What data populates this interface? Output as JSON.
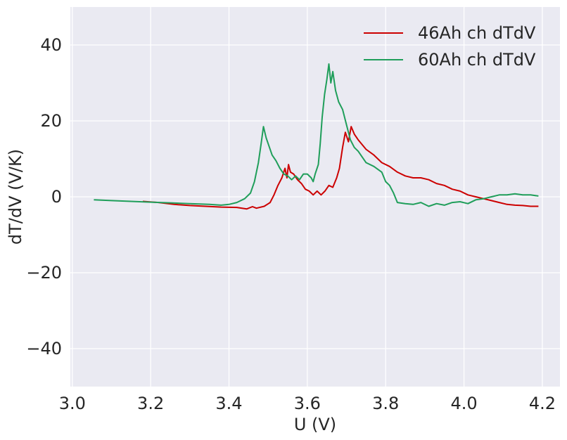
{
  "chart_data": {
    "type": "line",
    "title": "",
    "xlabel": "U (V)",
    "ylabel": "dT/dV (V/K)",
    "xlim": [
      2.995,
      4.245
    ],
    "ylim": [
      -50,
      50
    ],
    "xticks": [
      3.0,
      3.2,
      3.4,
      3.6,
      3.8,
      4.0,
      4.2
    ],
    "xtick_labels": [
      "3.0",
      "3.2",
      "3.4",
      "3.6",
      "3.8",
      "4.0",
      "4.2"
    ],
    "yticks": [
      -40,
      -20,
      0,
      20,
      40
    ],
    "ytick_labels": [
      "−40",
      "−20",
      "0",
      "20",
      "40"
    ],
    "grid": true,
    "legend_position": "top-right",
    "background_color": "#EAEAF2",
    "grid_color": "#FFFFFF",
    "series": [
      {
        "name": "46Ah ch dTdV",
        "color": "#CC0000",
        "points": [
          [
            3.18,
            -1.2
          ],
          [
            3.22,
            -1.5
          ],
          [
            3.26,
            -2.0
          ],
          [
            3.3,
            -2.3
          ],
          [
            3.34,
            -2.5
          ],
          [
            3.38,
            -2.7
          ],
          [
            3.42,
            -2.8
          ],
          [
            3.445,
            -3.2
          ],
          [
            3.46,
            -2.6
          ],
          [
            3.47,
            -3.0
          ],
          [
            3.49,
            -2.5
          ],
          [
            3.505,
            -1.5
          ],
          [
            3.515,
            0.5
          ],
          [
            3.525,
            3.0
          ],
          [
            3.535,
            5.0
          ],
          [
            3.543,
            7.5
          ],
          [
            3.548,
            5.0
          ],
          [
            3.552,
            8.5
          ],
          [
            3.557,
            6.5
          ],
          [
            3.565,
            6.0
          ],
          [
            3.575,
            4.5
          ],
          [
            3.585,
            3.5
          ],
          [
            3.595,
            2.0
          ],
          [
            3.605,
            1.5
          ],
          [
            3.615,
            0.5
          ],
          [
            3.625,
            1.5
          ],
          [
            3.635,
            0.5
          ],
          [
            3.645,
            1.5
          ],
          [
            3.655,
            3.0
          ],
          [
            3.665,
            2.5
          ],
          [
            3.675,
            5.0
          ],
          [
            3.682,
            7.5
          ],
          [
            3.69,
            13.0
          ],
          [
            3.697,
            17.0
          ],
          [
            3.705,
            14.5
          ],
          [
            3.712,
            18.5
          ],
          [
            3.72,
            16.5
          ],
          [
            3.73,
            15.0
          ],
          [
            3.75,
            12.5
          ],
          [
            3.77,
            11.0
          ],
          [
            3.79,
            9.0
          ],
          [
            3.81,
            8.0
          ],
          [
            3.83,
            6.5
          ],
          [
            3.85,
            5.5
          ],
          [
            3.87,
            5.0
          ],
          [
            3.89,
            5.0
          ],
          [
            3.91,
            4.5
          ],
          [
            3.93,
            3.5
          ],
          [
            3.95,
            3.0
          ],
          [
            3.97,
            2.0
          ],
          [
            3.99,
            1.5
          ],
          [
            4.01,
            0.5
          ],
          [
            4.03,
            0.0
          ],
          [
            4.05,
            -0.5
          ],
          [
            4.07,
            -1.0
          ],
          [
            4.09,
            -1.5
          ],
          [
            4.11,
            -2.0
          ],
          [
            4.13,
            -2.2
          ],
          [
            4.15,
            -2.3
          ],
          [
            4.17,
            -2.5
          ],
          [
            4.19,
            -2.5
          ]
        ]
      },
      {
        "name": "60Ah ch dTdV",
        "color": "#1F9E5A",
        "points": [
          [
            3.055,
            -0.8
          ],
          [
            3.1,
            -1.0
          ],
          [
            3.15,
            -1.2
          ],
          [
            3.2,
            -1.4
          ],
          [
            3.25,
            -1.6
          ],
          [
            3.3,
            -1.8
          ],
          [
            3.35,
            -2.0
          ],
          [
            3.38,
            -2.2
          ],
          [
            3.4,
            -2.0
          ],
          [
            3.42,
            -1.5
          ],
          [
            3.44,
            -0.5
          ],
          [
            3.455,
            1.0
          ],
          [
            3.465,
            4.0
          ],
          [
            3.475,
            9.0
          ],
          [
            3.482,
            14.0
          ],
          [
            3.488,
            18.5
          ],
          [
            3.495,
            15.5
          ],
          [
            3.5,
            14.0
          ],
          [
            3.51,
            11.0
          ],
          [
            3.52,
            9.5
          ],
          [
            3.53,
            7.5
          ],
          [
            3.54,
            6.0
          ],
          [
            3.55,
            5.5
          ],
          [
            3.56,
            4.5
          ],
          [
            3.57,
            5.5
          ],
          [
            3.58,
            4.5
          ],
          [
            3.59,
            6.0
          ],
          [
            3.6,
            6.0
          ],
          [
            3.61,
            5.0
          ],
          [
            3.615,
            4.0
          ],
          [
            3.62,
            6.0
          ],
          [
            3.628,
            8.5
          ],
          [
            3.633,
            14.0
          ],
          [
            3.638,
            21.0
          ],
          [
            3.644,
            27.0
          ],
          [
            3.65,
            31.0
          ],
          [
            3.655,
            35.0
          ],
          [
            3.66,
            30.0
          ],
          [
            3.665,
            33.0
          ],
          [
            3.672,
            28.0
          ],
          [
            3.68,
            25.0
          ],
          [
            3.69,
            23.0
          ],
          [
            3.7,
            19.0
          ],
          [
            3.71,
            15.0
          ],
          [
            3.72,
            13.0
          ],
          [
            3.73,
            12.0
          ],
          [
            3.74,
            10.5
          ],
          [
            3.75,
            9.0
          ],
          [
            3.77,
            8.0
          ],
          [
            3.79,
            6.5
          ],
          [
            3.8,
            4.0
          ],
          [
            3.81,
            3.0
          ],
          [
            3.82,
            1.0
          ],
          [
            3.83,
            -1.5
          ],
          [
            3.85,
            -1.8
          ],
          [
            3.87,
            -2.0
          ],
          [
            3.89,
            -1.5
          ],
          [
            3.91,
            -2.5
          ],
          [
            3.93,
            -1.8
          ],
          [
            3.95,
            -2.2
          ],
          [
            3.97,
            -1.5
          ],
          [
            3.99,
            -1.3
          ],
          [
            4.01,
            -1.8
          ],
          [
            4.03,
            -0.8
          ],
          [
            4.05,
            -0.5
          ],
          [
            4.07,
            0.0
          ],
          [
            4.09,
            0.5
          ],
          [
            4.11,
            0.5
          ],
          [
            4.13,
            0.8
          ],
          [
            4.15,
            0.5
          ],
          [
            4.17,
            0.5
          ],
          [
            4.19,
            0.2
          ]
        ]
      }
    ]
  }
}
